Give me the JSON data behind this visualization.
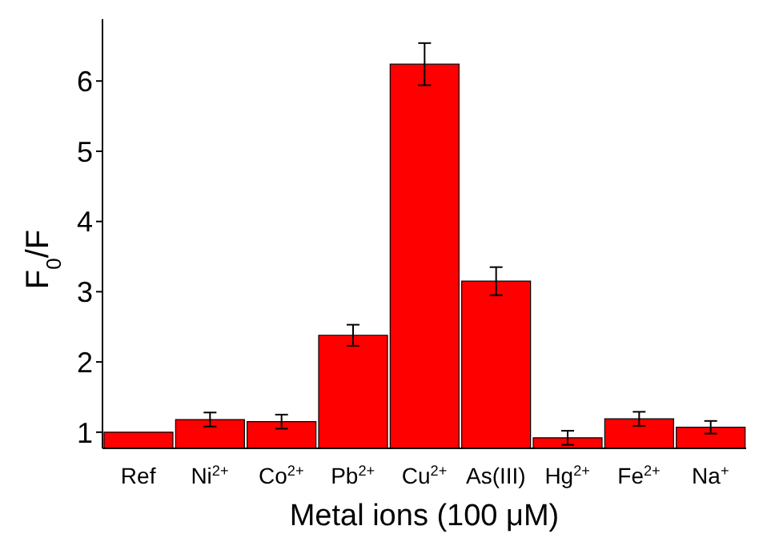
{
  "chart_data": {
    "type": "bar",
    "xlabel": "Metal ions (100 μM)",
    "ylabel": "F$_{0}$/F",
    "categories": [
      "Ref",
      "Ni$^{2+}$",
      "Co$^{2+}$",
      "Pb$^{2+}$",
      "Cu$^{2+}$",
      "As(III)",
      "Hg$^{2+}$",
      "Fe$^{2+}$",
      "Na$^{+}$"
    ],
    "values": [
      1.0,
      1.18,
      1.15,
      2.38,
      6.24,
      3.15,
      0.92,
      1.19,
      1.07
    ],
    "errors": [
      null,
      0.1,
      0.1,
      0.15,
      0.3,
      0.2,
      0.1,
      0.1,
      0.09
    ],
    "color": "#ff0000",
    "ylim": [
      0.77,
      6.88
    ],
    "yticks": [
      1,
      2,
      3,
      4,
      5,
      6
    ],
    "grid": false,
    "legend": false
  }
}
